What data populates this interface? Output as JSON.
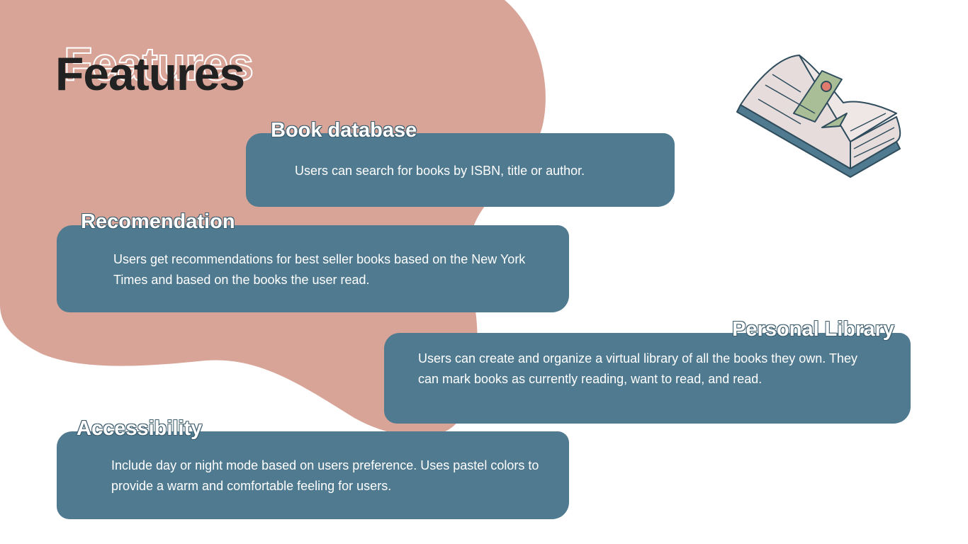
{
  "header": {
    "title": "Features"
  },
  "features": [
    {
      "heading": "Book database",
      "text": "Users can search for books by ISBN, title or author."
    },
    {
      "heading": "Recomendation",
      "text": "Users get recommendations for best seller books based on the New York Times and based on the books the user read."
    },
    {
      "heading": "Personal Library",
      "text": "Users can create and organize a virtual library of all the books they own. They can mark books as currently reading, want to read, and read."
    },
    {
      "heading": "Accessibility",
      "text": "Include day or night mode based on users preference. Uses pastel colors to provide a warm and comfortable feeling for users."
    }
  ]
}
